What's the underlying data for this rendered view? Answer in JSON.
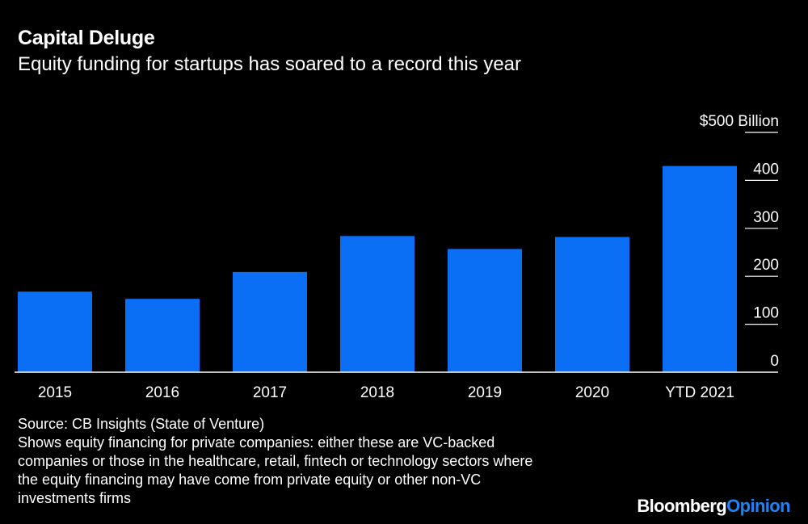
{
  "title": "Capital Deluge",
  "subtitle": "Equity funding for startups has soared to a record this year",
  "chart_data": {
    "type": "bar",
    "categories": [
      "2015",
      "2016",
      "2017",
      "2018",
      "2019",
      "2020",
      "YTD 2021"
    ],
    "values": [
      168,
      153,
      209,
      284,
      257,
      282,
      430
    ],
    "unit_label": "$500 Billion",
    "y_ticks": [
      0,
      100,
      200,
      300,
      400,
      500
    ],
    "y_tick_labels": [
      "0",
      "100",
      "200",
      "300",
      "400",
      "$500 Billion"
    ],
    "ylim": [
      0,
      500
    ],
    "bar_color": "#0a6ff5",
    "grid": false
  },
  "footnote": {
    "source": "Source: CB Insights (State of Venture)",
    "note": [
      "Shows equity financing for private companies: either these are VC-backed",
      "companies or those in the healthcare, retail, fintech or technology sectors where",
      "the equity financing may have come from private equity or other non-VC",
      "investments firms"
    ]
  },
  "brand": {
    "part1": "Bloomberg",
    "part2": "Opinion"
  },
  "colors": {
    "background": "#000000",
    "text": "#ffffff",
    "bar": "#0a6ff5",
    "brand_accent": "#1e84f5"
  }
}
